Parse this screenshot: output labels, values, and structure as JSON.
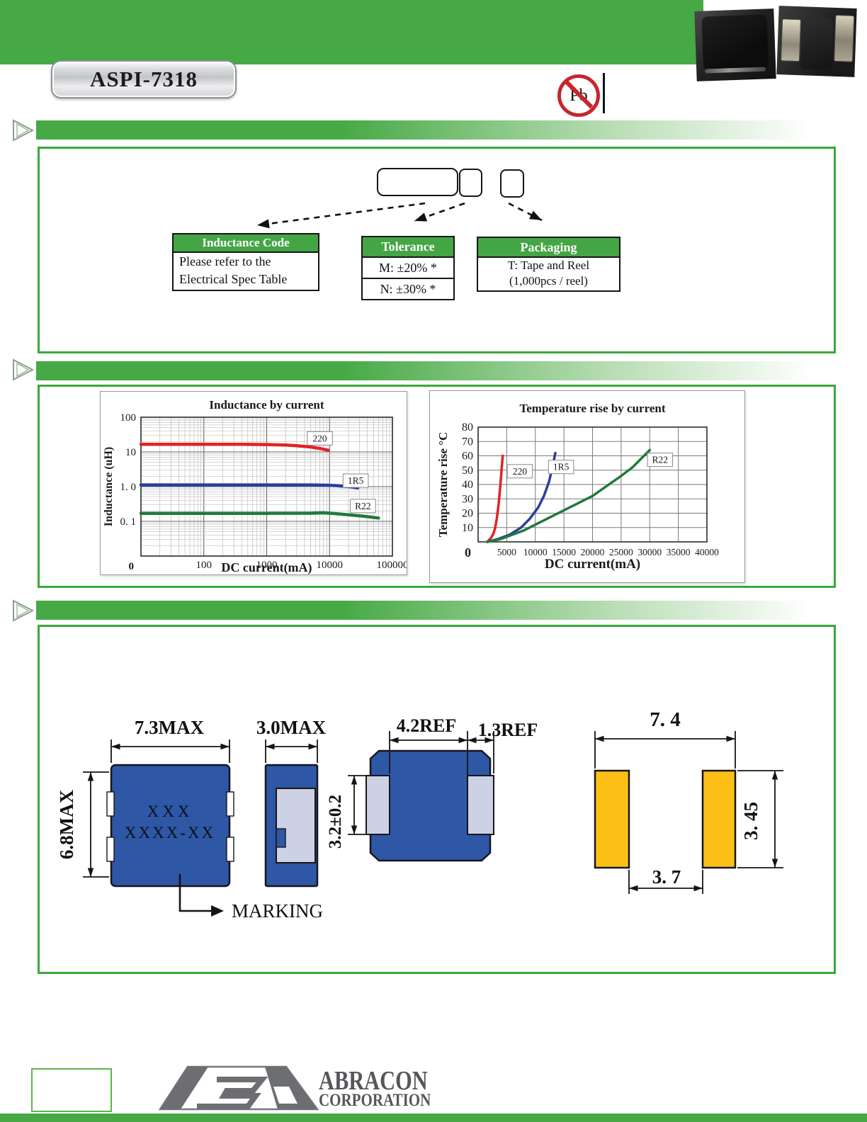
{
  "header": {
    "product_code": "ASPI-7318",
    "pb_free_label": "Pb"
  },
  "part_numbering": {
    "tables": [
      {
        "title": "Inductance Code",
        "body_lines": [
          "Please refer to the",
          "Electrical Spec Table"
        ]
      },
      {
        "title": "Tolerance",
        "rows": [
          "M: ±20% *",
          "N: ±30% *"
        ]
      },
      {
        "title": "Packaging",
        "body_lines": [
          "T: Tape and Reel",
          "(1,000pcs / reel)"
        ]
      }
    ]
  },
  "chart_data": [
    {
      "type": "line",
      "title": "Inductance by current",
      "xlabel": "DC current(mA)",
      "ylabel": "Inductance (uH)",
      "x_scale": "log",
      "y_scale": "log",
      "xlim": [
        10,
        100000
      ],
      "ylim": [
        0.01,
        100
      ],
      "grid": true,
      "legend_position": "on-curve-boxes",
      "x_ticks": [
        {
          "v": 100,
          "label": "100"
        },
        {
          "v": 1000,
          "label": "1000"
        },
        {
          "v": 10000,
          "label": "10000"
        },
        {
          "v": 100000,
          "label": "100000"
        }
      ],
      "y_ticks": [
        {
          "v": 100,
          "label": "100"
        },
        {
          "v": 10,
          "label": "10"
        },
        {
          "v": 1,
          "label": "1. 0"
        },
        {
          "v": 0.1,
          "label": "0. 1"
        }
      ],
      "origin_label": "0",
      "series": [
        {
          "name": "220",
          "color": "#e02426",
          "label_at": [
            7000,
            24
          ],
          "points": [
            [
              10,
              16.5
            ],
            [
              100,
              16.5
            ],
            [
              400,
              16.5
            ],
            [
              1000,
              16.3
            ],
            [
              2000,
              15.8
            ],
            [
              3000,
              15.1
            ],
            [
              5000,
              13.9
            ],
            [
              7000,
              12.6
            ],
            [
              9500,
              11.2
            ]
          ]
        },
        {
          "name": "1R5",
          "color": "#2c3e99",
          "label_at": [
            26000,
            1.45
          ],
          "points": [
            [
              10,
              1.12
            ],
            [
              1000,
              1.12
            ],
            [
              5000,
              1.12
            ],
            [
              9000,
              1.1
            ],
            [
              13000,
              1.07
            ],
            [
              18000,
              1.02
            ],
            [
              23000,
              0.97
            ],
            [
              28000,
              0.92
            ]
          ]
        },
        {
          "name": "R22",
          "color": "#1e7a3c",
          "label_at": [
            34000,
            0.27
          ],
          "points": [
            [
              10,
              0.17
            ],
            [
              1000,
              0.17
            ],
            [
              5000,
              0.172
            ],
            [
              8000,
              0.176
            ],
            [
              12000,
              0.168
            ],
            [
              20000,
              0.155
            ],
            [
              35000,
              0.14
            ],
            [
              60000,
              0.125
            ]
          ]
        }
      ]
    },
    {
      "type": "line",
      "title": "Temperature rise by current",
      "xlabel": "DC current(mA)",
      "ylabel": "Temperature rise °C",
      "x_scale": "linear",
      "y_scale": "linear",
      "xlim": [
        0,
        40000
      ],
      "ylim": [
        0,
        80
      ],
      "grid": true,
      "legend_position": "on-curve-boxes",
      "x_ticks": [
        {
          "v": 5000,
          "label": "5000"
        },
        {
          "v": 10000,
          "label": "10000"
        },
        {
          "v": 15000,
          "label": "15000"
        },
        {
          "v": 20000,
          "label": "20000"
        },
        {
          "v": 25000,
          "label": "25000"
        },
        {
          "v": 30000,
          "label": "30000"
        },
        {
          "v": 35000,
          "label": "35000"
        },
        {
          "v": 40000,
          "label": "40000"
        }
      ],
      "y_ticks": [
        {
          "v": 80,
          "label": "80"
        },
        {
          "v": 70,
          "label": "70"
        },
        {
          "v": 60,
          "label": "60"
        },
        {
          "v": 50,
          "label": "50"
        },
        {
          "v": 40,
          "label": "40"
        },
        {
          "v": 30,
          "label": "30"
        },
        {
          "v": 20,
          "label": "20"
        },
        {
          "v": 10,
          "label": "10"
        }
      ],
      "origin_label": "0",
      "series": [
        {
          "name": "220",
          "color": "#e02426",
          "label_at": [
            7300,
            49
          ],
          "points": [
            [
              1600,
              0
            ],
            [
              2300,
              3
            ],
            [
              2700,
              6
            ],
            [
              3000,
              10
            ],
            [
              3300,
              17
            ],
            [
              3600,
              27
            ],
            [
              3900,
              40
            ],
            [
              4100,
              50
            ],
            [
              4300,
              60
            ]
          ]
        },
        {
          "name": "1R5",
          "color": "#2c3e99",
          "label_at": [
            14500,
            52
          ],
          "points": [
            [
              1600,
              0
            ],
            [
              3500,
              2
            ],
            [
              5500,
              5
            ],
            [
              7500,
              10
            ],
            [
              9000,
              16
            ],
            [
              10500,
              24
            ],
            [
              11500,
              32
            ],
            [
              12400,
              42
            ],
            [
              13000,
              52
            ],
            [
              13500,
              62
            ]
          ]
        },
        {
          "name": "R22",
          "color": "#1e7a3c",
          "label_at": [
            31800,
            57
          ],
          "points": [
            [
              1600,
              0
            ],
            [
              4000,
              2
            ],
            [
              6000,
              5
            ],
            [
              8000,
              8
            ],
            [
              10000,
              12
            ],
            [
              12500,
              17
            ],
            [
              15000,
              22
            ],
            [
              17500,
              27
            ],
            [
              20000,
              32
            ],
            [
              22500,
              39
            ],
            [
              25000,
              46
            ],
            [
              27000,
              52
            ],
            [
              28500,
              58
            ],
            [
              30000,
              64
            ]
          ]
        }
      ]
    }
  ],
  "dimensions": {
    "top_view": {
      "width_label": "7.3MAX",
      "height_label": "6.8MAX",
      "marking_lines": [
        "XXX",
        "XXXX-XX"
      ],
      "marking_label": "MARKING"
    },
    "side_view": {
      "width_label": "3.0MAX",
      "pad_height_label": "3.2±0.2"
    },
    "bottom_view": {
      "inner_label": "4.2REF",
      "terminal_label": "1.3REF"
    },
    "land_pattern": {
      "width_label": "7. 4",
      "pad_height_label": "3. 45",
      "gap_label": "3. 7"
    }
  },
  "footer": {
    "company_line1": "ABRACON",
    "company_line2": "CORPORATION"
  },
  "colors": {
    "brand_green": "#46a945",
    "box_border_green": "#3aa93a",
    "table_header_green": "#44a544",
    "body_blue": "#2e57a6",
    "terminal_gray": "#ccd1e3",
    "land_pad_yellow": "#fcbf15",
    "curve_220": "#e02426",
    "curve_1R5": "#2c3e99",
    "curve_R22": "#1e7a3c",
    "pb_red": "#c8252c"
  }
}
